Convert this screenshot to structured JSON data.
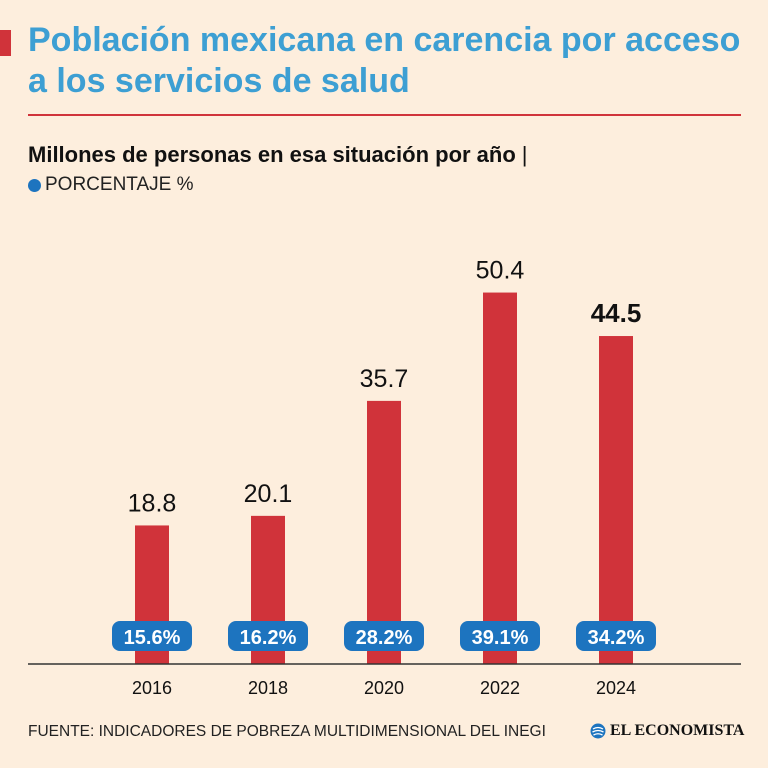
{
  "header": {
    "title": "Población mexicana en carencia por acceso a los servicios de salud",
    "subtitle": "Millones de personas en esa situación por año",
    "subtitle_separator": "|",
    "legend_label": "PORCENTAJE %"
  },
  "footer": {
    "source": "FUENTE: INDICADORES DE POBREZA MULTIDIMENSIONAL DEL INEGI",
    "brand": "EL ECONOMISTA"
  },
  "colors": {
    "bar": "#d0333a",
    "badge": "#1d74bf",
    "title": "#3d9fd3",
    "background": "#fdeedd"
  },
  "chart_data": {
    "type": "bar",
    "title": "Población mexicana en carencia por acceso a los servicios de salud",
    "ylabel": "Millones de personas",
    "xlabel": "",
    "categories": [
      "2016",
      "2018",
      "2020",
      "2022",
      "2024"
    ],
    "series": [
      {
        "name": "Millones de personas",
        "values": [
          18.8,
          20.1,
          35.7,
          50.4,
          44.5
        ],
        "labels": [
          "18.8",
          "20.1",
          "35.7",
          "50.4",
          "44.5"
        ]
      },
      {
        "name": "PORCENTAJE %",
        "values": [
          15.6,
          16.2,
          28.2,
          39.1,
          34.2
        ],
        "labels": [
          "15.6%",
          "16.2%",
          "28.2%",
          "39.1%",
          "34.2%"
        ]
      }
    ],
    "highlight_index": 4,
    "ylim": [
      0,
      55
    ],
    "grid": false
  }
}
